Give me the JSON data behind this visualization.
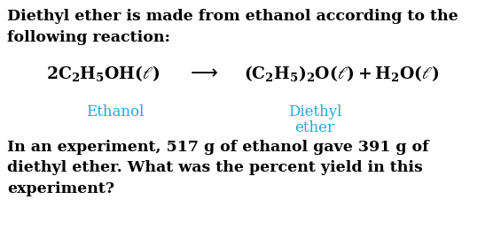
{
  "bg_color": "#ffffff",
  "text_color": "#000000",
  "cyan_color": "#1AABDB",
  "line1": "Diethyl ether is made from ethanol according to the",
  "line2": "following reaction:",
  "bottom_line1": "In an experiment, 517 g of ethanol gave 391 g of",
  "bottom_line2": "diethyl ether. What was the percent yield in this",
  "bottom_line3": "experiment?",
  "ethanol_label": "Ethanol",
  "diethyl_label1": "Diethyl",
  "diethyl_label2": "ether",
  "lhs": "$\\mathregular{2C_2H_5OH(\\ell)}$",
  "arrow": "$\\longrightarrow$",
  "rhs": "$\\mathregular{(C_2H_5)_2O(\\ell) + H_2O(\\ell)}$",
  "font_size_body": 12.5,
  "font_size_eq": 13.5,
  "font_size_label": 12.0,
  "figwidth": 5.65,
  "figheight": 2.6,
  "dpi": 100
}
